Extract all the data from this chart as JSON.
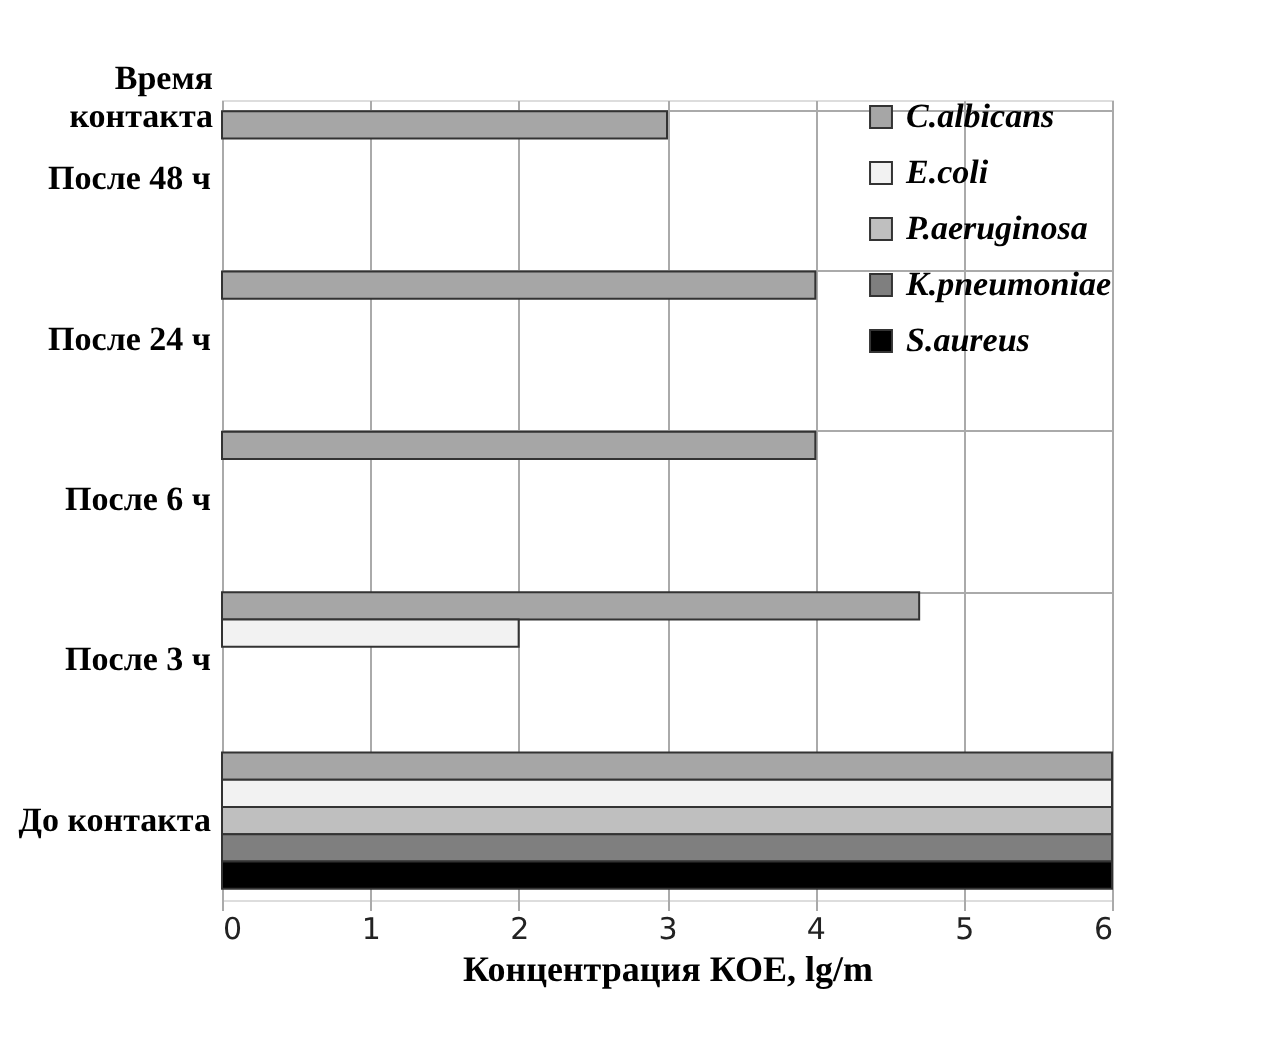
{
  "chart_data": {
    "type": "bar",
    "orientation": "horizontal",
    "ylabel": "Время контакта",
    "xlabel": "Концентрация КОЕ, lg/m",
    "categories": [
      "После 48 ч",
      "После 24 ч",
      "После 6 ч",
      "После 3 ч",
      "До контакта"
    ],
    "series": [
      {
        "name": "C.albicans",
        "color": "#a6a6a6",
        "values": [
          3,
          4,
          4,
          4.7,
          6
        ]
      },
      {
        "name": "E.coli",
        "color": "#f2f2f2",
        "values": [
          null,
          null,
          null,
          2,
          6
        ]
      },
      {
        "name": "P.aeruginosa",
        "color": "#bfbfbf",
        "values": [
          null,
          null,
          null,
          null,
          6
        ]
      },
      {
        "name": "K.pneumoniae",
        "color": "#7f7f7f",
        "values": [
          null,
          null,
          null,
          null,
          6
        ]
      },
      {
        "name": "S.aureus",
        "color": "#000000",
        "values": [
          null,
          null,
          null,
          null,
          6
        ]
      }
    ],
    "xlim": [
      0,
      6
    ],
    "xticks": [
      0,
      1,
      2,
      3,
      4,
      5,
      6
    ],
    "grid": true,
    "legend": "top right"
  }
}
